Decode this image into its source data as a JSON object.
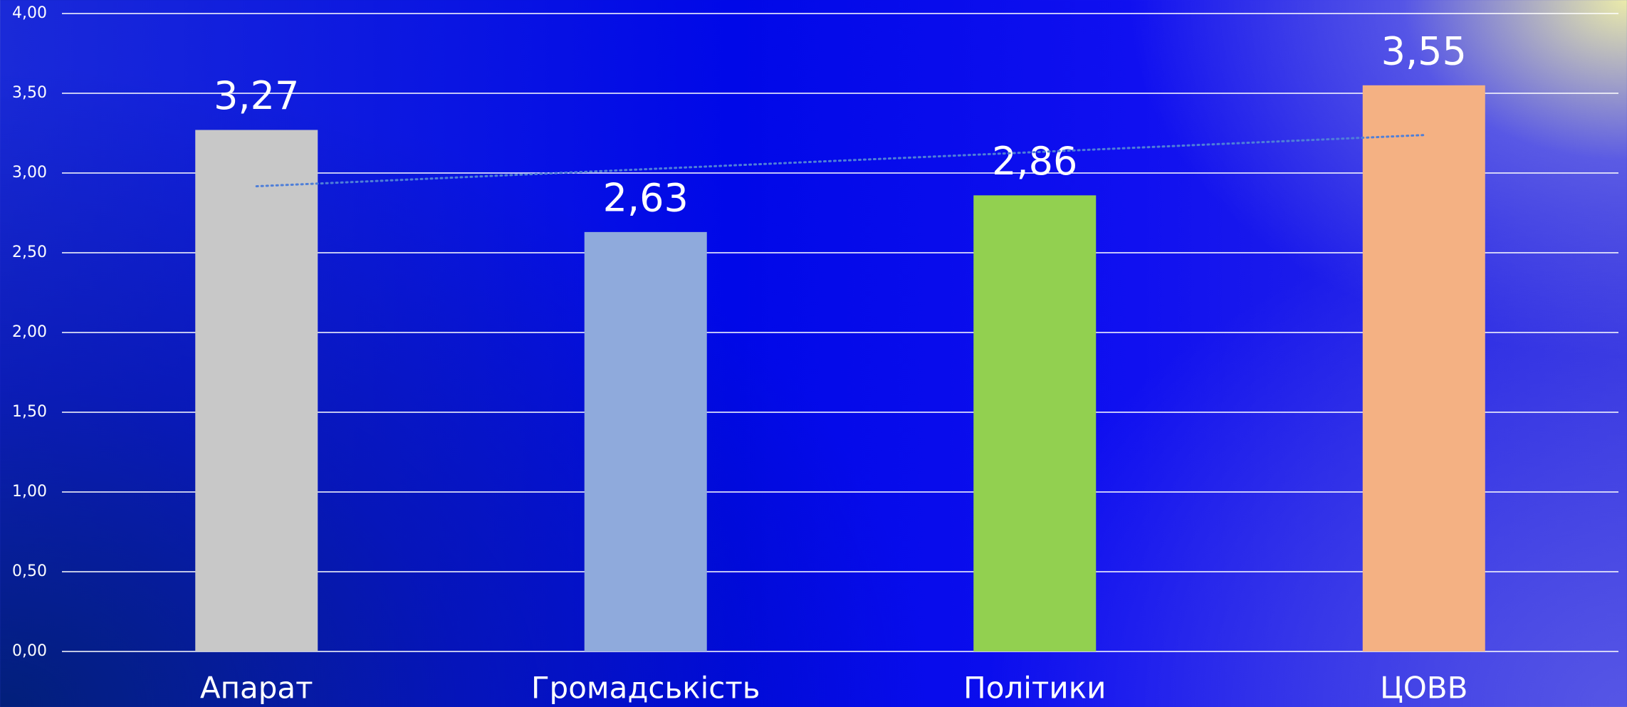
{
  "chart_data": {
    "type": "bar",
    "categories": [
      "Апарат",
      "Громадськість",
      "Політики",
      "ЦОВВ"
    ],
    "values": [
      3.27,
      2.63,
      2.86,
      3.55
    ],
    "value_labels": [
      "3,27",
      "2,63",
      "2,86",
      "3,55"
    ],
    "colors": [
      "#c8c8c8",
      "#8faadc",
      "#92d050",
      "#f4b183"
    ],
    "ylim": [
      0,
      4
    ],
    "yticks": [
      {
        "value": 0,
        "label": "0,00"
      },
      {
        "value": 0.5,
        "label": "0,50"
      },
      {
        "value": 1,
        "label": "1,00"
      },
      {
        "value": 1.5,
        "label": "1,50"
      },
      {
        "value": 2,
        "label": "2,00"
      },
      {
        "value": 2.5,
        "label": "2,50"
      },
      {
        "value": 3,
        "label": "3,00"
      },
      {
        "value": 3.5,
        "label": "3,50"
      },
      {
        "value": 4,
        "label": "4,00"
      }
    ],
    "grid": true,
    "trendline": true
  }
}
